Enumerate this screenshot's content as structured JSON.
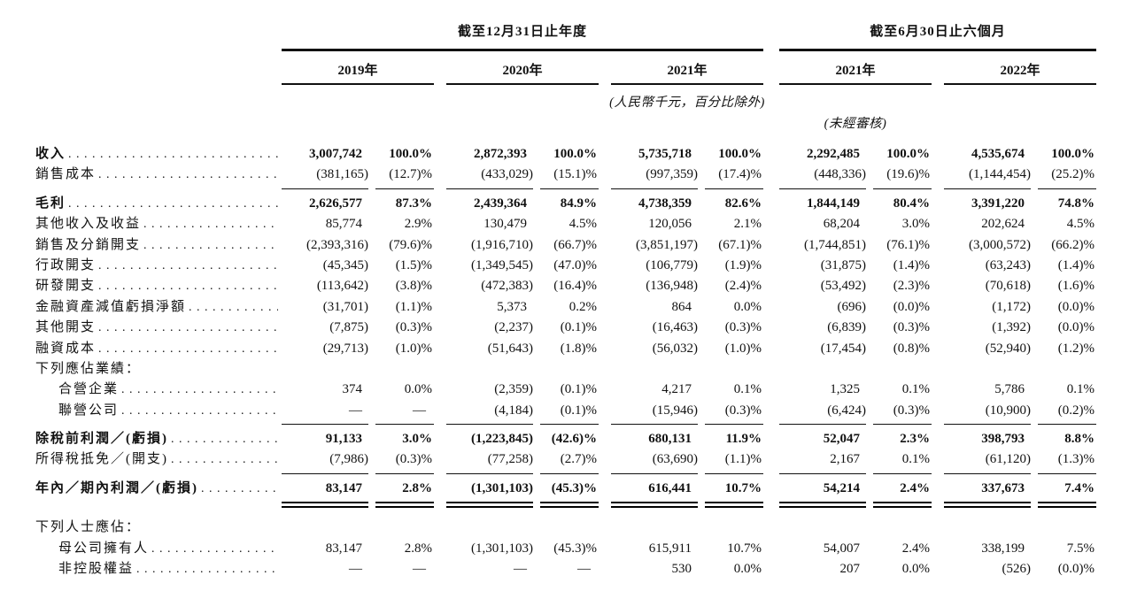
{
  "page": {
    "background": "#ffffff",
    "text_color": "#111111",
    "language": "zh-Hant",
    "document_type": "financial-summary-income-statement"
  },
  "table": {
    "groups": [
      {
        "title": "截至12月31日止年度",
        "years": [
          "2019年",
          "2020年",
          "2021年"
        ]
      },
      {
        "title": "截至6月30日止六個月",
        "years": [
          "2021年",
          "2022年"
        ]
      }
    ],
    "unit_note": "(人民幣千元，百分比除外)",
    "unaudited_note": "(未經審核)",
    "rows": [
      {
        "label": "收入",
        "bold": true,
        "dots": true,
        "values": [
          [
            "3,007,742",
            "100.0%"
          ],
          [
            "2,872,393",
            "100.0%"
          ],
          [
            "5,735,718",
            "100.0%"
          ],
          [
            "2,292,485",
            "100.0%"
          ],
          [
            "4,535,674",
            "100.0%"
          ]
        ]
      },
      {
        "label": "銷售成本",
        "dots": true,
        "rule": "single",
        "values": [
          [
            "(381,165)",
            "(12.7)%"
          ],
          [
            "(433,029)",
            "(15.1)%"
          ],
          [
            "(997,359)",
            "(17.4)%"
          ],
          [
            "(448,336)",
            "(19.6)%"
          ],
          [
            "(1,144,454)",
            "(25.2)%"
          ]
        ]
      },
      {
        "label": "毛利",
        "bold": true,
        "dots": true,
        "values": [
          [
            "2,626,577",
            "87.3%"
          ],
          [
            "2,439,364",
            "84.9%"
          ],
          [
            "4,738,359",
            "82.6%"
          ],
          [
            "1,844,149",
            "80.4%"
          ],
          [
            "3,391,220",
            "74.8%"
          ]
        ]
      },
      {
        "label": "其他收入及收益",
        "dots": true,
        "values": [
          [
            "85,774",
            "2.9%"
          ],
          [
            "130,479",
            "4.5%"
          ],
          [
            "120,056",
            "2.1%"
          ],
          [
            "68,204",
            "3.0%"
          ],
          [
            "202,624",
            "4.5%"
          ]
        ]
      },
      {
        "label": "銷售及分銷開支",
        "dots": true,
        "values": [
          [
            "(2,393,316)",
            "(79.6)%"
          ],
          [
            "(1,916,710)",
            "(66.7)%"
          ],
          [
            "(3,851,197)",
            "(67.1)%"
          ],
          [
            "(1,744,851)",
            "(76.1)%"
          ],
          [
            "(3,000,572)",
            "(66.2)%"
          ]
        ]
      },
      {
        "label": "行政開支",
        "dots": true,
        "values": [
          [
            "(45,345)",
            "(1.5)%"
          ],
          [
            "(1,349,545)",
            "(47.0)%"
          ],
          [
            "(106,779)",
            "(1.9)%"
          ],
          [
            "(31,875)",
            "(1.4)%"
          ],
          [
            "(63,243)",
            "(1.4)%"
          ]
        ]
      },
      {
        "label": "研發開支",
        "dots": true,
        "values": [
          [
            "(113,642)",
            "(3.8)%"
          ],
          [
            "(472,383)",
            "(16.4)%"
          ],
          [
            "(136,948)",
            "(2.4)%"
          ],
          [
            "(53,492)",
            "(2.3)%"
          ],
          [
            "(70,618)",
            "(1.6)%"
          ]
        ]
      },
      {
        "label": "金融資產減值虧損淨額",
        "dots": true,
        "values": [
          [
            "(31,701)",
            "(1.1)%"
          ],
          [
            "5,373",
            "0.2%"
          ],
          [
            "864",
            "0.0%"
          ],
          [
            "(696)",
            "(0.0)%"
          ],
          [
            "(1,172)",
            "(0.0)%"
          ]
        ]
      },
      {
        "label": "其他開支",
        "dots": true,
        "values": [
          [
            "(7,875)",
            "(0.3)%"
          ],
          [
            "(2,237)",
            "(0.1)%"
          ],
          [
            "(16,463)",
            "(0.3)%"
          ],
          [
            "(6,839)",
            "(0.3)%"
          ],
          [
            "(1,392)",
            "(0.0)%"
          ]
        ]
      },
      {
        "label": "融資成本",
        "dots": true,
        "values": [
          [
            "(29,713)",
            "(1.0)%"
          ],
          [
            "(51,643)",
            "(1.8)%"
          ],
          [
            "(56,032)",
            "(1.0)%"
          ],
          [
            "(17,454)",
            "(0.8)%"
          ],
          [
            "(52,940)",
            "(1.2)%"
          ]
        ]
      },
      {
        "label": "下列應佔業績：",
        "section": true,
        "values": []
      },
      {
        "label": "合營企業",
        "indent": true,
        "dots": true,
        "values": [
          [
            "374",
            "0.0%"
          ],
          [
            "(2,359)",
            "(0.1)%"
          ],
          [
            "4,217",
            "0.1%"
          ],
          [
            "1,325",
            "0.1%"
          ],
          [
            "5,786",
            "0.1%"
          ]
        ]
      },
      {
        "label": "聯營公司",
        "indent": true,
        "dots": true,
        "rule": "single",
        "values": [
          [
            "—",
            "—"
          ],
          [
            "(4,184)",
            "(0.1)%"
          ],
          [
            "(15,946)",
            "(0.3)%"
          ],
          [
            "(6,424)",
            "(0.3)%"
          ],
          [
            "(10,900)",
            "(0.2)%"
          ]
        ]
      },
      {
        "label": "除稅前利潤／(虧損)",
        "bold": true,
        "dots": true,
        "values": [
          [
            "91,133",
            "3.0%"
          ],
          [
            "(1,223,845)",
            "(42.6)%"
          ],
          [
            "680,131",
            "11.9%"
          ],
          [
            "52,047",
            "2.3%"
          ],
          [
            "398,793",
            "8.8%"
          ]
        ]
      },
      {
        "label": "所得稅抵免／(開支)",
        "dots": true,
        "rule": "single",
        "values": [
          [
            "(7,986)",
            "(0.3)%"
          ],
          [
            "(77,258)",
            "(2.7)%"
          ],
          [
            "(63,690)",
            "(1.1)%"
          ],
          [
            "2,167",
            "0.1%"
          ],
          [
            "(61,120)",
            "(1.3)%"
          ]
        ]
      },
      {
        "label": "年內／期內利潤／(虧損)",
        "bold": true,
        "dots": true,
        "rule": "double",
        "values": [
          [
            "83,147",
            "2.8%"
          ],
          [
            "(1,301,103)",
            "(45.3)%"
          ],
          [
            "616,441",
            "10.7%"
          ],
          [
            "54,214",
            "2.4%"
          ],
          [
            "337,673",
            "7.4%"
          ]
        ]
      },
      {
        "label": "下列人士應佔：",
        "section": true,
        "values": []
      },
      {
        "label": "母公司擁有人",
        "indent": true,
        "dots": true,
        "values": [
          [
            "83,147",
            "2.8%"
          ],
          [
            "(1,301,103)",
            "(45.3)%"
          ],
          [
            "615,911",
            "10.7%"
          ],
          [
            "54,007",
            "2.4%"
          ],
          [
            "338,199",
            "7.5%"
          ]
        ]
      },
      {
        "label": "非控股權益",
        "indent": true,
        "dots": true,
        "values": [
          [
            "—",
            "—"
          ],
          [
            "—",
            "—"
          ],
          [
            "530",
            "0.0%"
          ],
          [
            "207",
            "0.0%"
          ],
          [
            "(526)",
            "(0.0)%"
          ]
        ]
      }
    ]
  }
}
